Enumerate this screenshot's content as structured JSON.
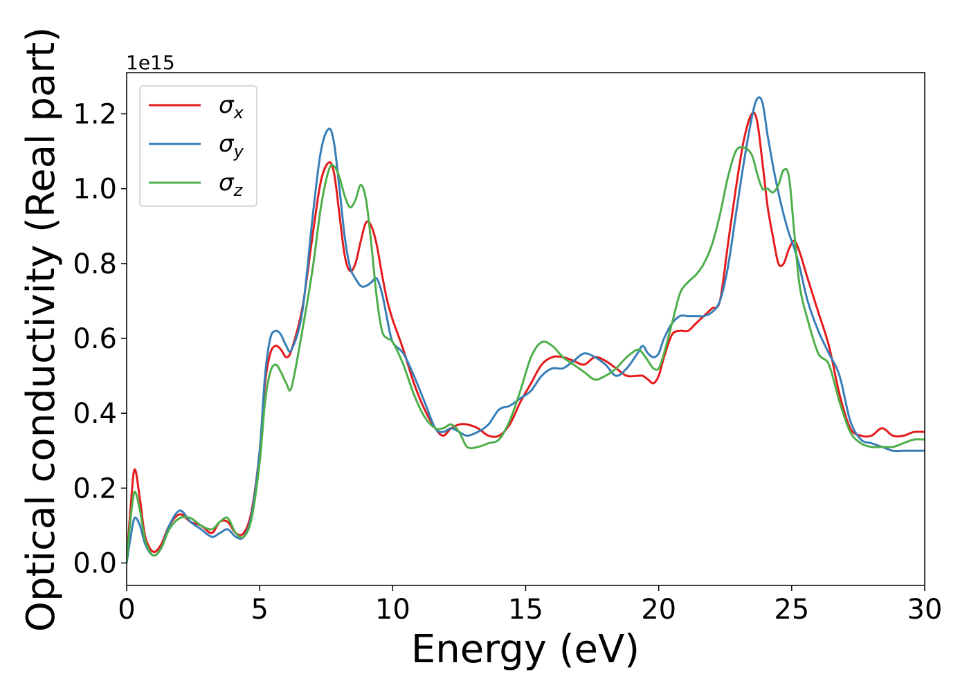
{
  "chart_data": {
    "type": "line",
    "xlabel": "Energy (eV)",
    "ylabel": "Optical conductivity (Real part)",
    "y_offset_text": "1e15",
    "xlim": [
      0,
      30
    ],
    "ylim": [
      -0.06,
      1.31
    ],
    "xticks": [
      0,
      5,
      10,
      15,
      20,
      25,
      30
    ],
    "xtick_labels": [
      "0",
      "5",
      "10",
      "15",
      "20",
      "25",
      "30"
    ],
    "yticks": [
      0.0,
      0.2,
      0.4,
      0.6,
      0.8,
      1.0,
      1.2
    ],
    "ytick_labels": [
      "0.0",
      "0.2",
      "0.4",
      "0.6",
      "0.8",
      "1.0",
      "1.2"
    ],
    "grid": false,
    "legend_position": "top-left",
    "series": [
      {
        "name": "σx",
        "symbol": "σ",
        "subscript": "x",
        "color": "#e41a1c",
        "x": [
          0,
          0.15,
          0.3,
          0.5,
          0.7,
          1.0,
          1.3,
          1.6,
          2.0,
          2.4,
          2.8,
          3.2,
          3.5,
          3.8,
          4.1,
          4.4,
          4.7,
          5.0,
          5.2,
          5.4,
          5.6,
          5.8,
          6.0,
          6.2,
          6.6,
          7.0,
          7.3,
          7.6,
          7.8,
          8.0,
          8.2,
          8.4,
          8.6,
          8.8,
          9.0,
          9.2,
          9.4,
          9.6,
          9.8,
          10.0,
          10.4,
          10.8,
          11.2,
          11.6,
          11.9,
          12.2,
          12.5,
          12.8,
          13.2,
          13.6,
          14.0,
          14.4,
          14.8,
          15.2,
          15.6,
          16.0,
          16.4,
          16.8,
          17.2,
          17.6,
          18.0,
          18.4,
          18.8,
          19.2,
          19.4,
          19.6,
          19.8,
          20.0,
          20.2,
          20.5,
          20.8,
          21.1,
          21.4,
          21.7,
          22.0,
          22.3,
          22.6,
          22.9,
          23.2,
          23.5,
          23.7,
          23.9,
          24.1,
          24.3,
          24.5,
          24.7,
          24.9,
          25.1,
          25.3,
          25.6,
          26.0,
          26.4,
          26.8,
          27.2,
          27.6,
          28.0,
          28.4,
          28.8,
          29.2,
          29.6,
          30.0
        ],
        "y": [
          0.0,
          0.15,
          0.25,
          0.17,
          0.07,
          0.03,
          0.05,
          0.1,
          0.13,
          0.11,
          0.1,
          0.08,
          0.11,
          0.11,
          0.08,
          0.08,
          0.14,
          0.3,
          0.48,
          0.56,
          0.58,
          0.57,
          0.55,
          0.57,
          0.68,
          0.88,
          1.02,
          1.07,
          1.04,
          0.93,
          0.82,
          0.78,
          0.8,
          0.86,
          0.91,
          0.9,
          0.85,
          0.77,
          0.7,
          0.65,
          0.57,
          0.48,
          0.41,
          0.36,
          0.34,
          0.36,
          0.37,
          0.37,
          0.36,
          0.34,
          0.34,
          0.37,
          0.43,
          0.48,
          0.53,
          0.55,
          0.55,
          0.54,
          0.53,
          0.55,
          0.54,
          0.52,
          0.5,
          0.5,
          0.5,
          0.49,
          0.48,
          0.5,
          0.55,
          0.61,
          0.62,
          0.62,
          0.64,
          0.66,
          0.68,
          0.7,
          0.85,
          1.0,
          1.13,
          1.2,
          1.18,
          1.07,
          0.95,
          0.87,
          0.8,
          0.8,
          0.84,
          0.86,
          0.83,
          0.76,
          0.67,
          0.58,
          0.45,
          0.36,
          0.34,
          0.34,
          0.36,
          0.34,
          0.34,
          0.35,
          0.35
        ]
      },
      {
        "name": "σy",
        "symbol": "σ",
        "subscript": "y",
        "color": "#377eb8",
        "x": [
          0,
          0.15,
          0.3,
          0.5,
          0.7,
          1.0,
          1.3,
          1.6,
          2.0,
          2.4,
          2.8,
          3.2,
          3.5,
          3.8,
          4.1,
          4.4,
          4.7,
          5.0,
          5.2,
          5.4,
          5.6,
          5.8,
          6.0,
          6.2,
          6.6,
          7.0,
          7.3,
          7.6,
          7.8,
          8.0,
          8.2,
          8.4,
          8.6,
          8.8,
          9.0,
          9.2,
          9.4,
          9.6,
          9.8,
          10.0,
          10.4,
          10.8,
          11.2,
          11.6,
          11.9,
          12.2,
          12.5,
          12.8,
          13.2,
          13.6,
          14.0,
          14.4,
          14.8,
          15.2,
          15.6,
          16.0,
          16.4,
          16.8,
          17.2,
          17.6,
          18.0,
          18.4,
          18.8,
          19.2,
          19.4,
          19.6,
          19.8,
          20.0,
          20.2,
          20.5,
          20.8,
          21.1,
          21.4,
          21.7,
          22.0,
          22.3,
          22.6,
          22.9,
          23.2,
          23.5,
          23.7,
          23.9,
          24.1,
          24.3,
          24.5,
          24.7,
          24.9,
          25.1,
          25.3,
          25.6,
          26.0,
          26.4,
          26.8,
          27.2,
          27.6,
          28.0,
          28.4,
          28.8,
          29.2,
          29.6,
          30.0
        ],
        "y": [
          0.0,
          0.07,
          0.12,
          0.1,
          0.05,
          0.02,
          0.04,
          0.1,
          0.14,
          0.11,
          0.09,
          0.07,
          0.08,
          0.09,
          0.07,
          0.07,
          0.13,
          0.3,
          0.5,
          0.6,
          0.62,
          0.61,
          0.58,
          0.57,
          0.67,
          0.93,
          1.1,
          1.16,
          1.12,
          1.0,
          0.87,
          0.79,
          0.76,
          0.74,
          0.74,
          0.75,
          0.76,
          0.72,
          0.65,
          0.59,
          0.56,
          0.5,
          0.43,
          0.36,
          0.35,
          0.36,
          0.35,
          0.34,
          0.35,
          0.37,
          0.41,
          0.42,
          0.44,
          0.46,
          0.5,
          0.52,
          0.52,
          0.54,
          0.56,
          0.55,
          0.53,
          0.5,
          0.52,
          0.56,
          0.58,
          0.56,
          0.55,
          0.56,
          0.6,
          0.64,
          0.66,
          0.66,
          0.66,
          0.66,
          0.67,
          0.7,
          0.79,
          0.93,
          1.07,
          1.19,
          1.24,
          1.23,
          1.14,
          1.06,
          0.99,
          0.93,
          0.88,
          0.84,
          0.79,
          0.7,
          0.62,
          0.56,
          0.5,
          0.38,
          0.33,
          0.32,
          0.31,
          0.3,
          0.3,
          0.3,
          0.3
        ]
      },
      {
        "name": "σz",
        "symbol": "σ",
        "subscript": "z",
        "color": "#4daf4a",
        "x": [
          0,
          0.15,
          0.3,
          0.5,
          0.7,
          1.0,
          1.3,
          1.6,
          2.0,
          2.4,
          2.8,
          3.2,
          3.5,
          3.8,
          4.1,
          4.4,
          4.7,
          5.0,
          5.2,
          5.4,
          5.6,
          5.8,
          6.0,
          6.2,
          6.6,
          7.0,
          7.3,
          7.6,
          7.8,
          8.0,
          8.2,
          8.4,
          8.6,
          8.8,
          9.0,
          9.2,
          9.4,
          9.6,
          9.8,
          10.0,
          10.4,
          10.8,
          11.2,
          11.6,
          11.9,
          12.2,
          12.5,
          12.8,
          13.2,
          13.6,
          14.0,
          14.4,
          14.8,
          15.2,
          15.6,
          16.0,
          16.4,
          16.8,
          17.2,
          17.6,
          18.0,
          18.4,
          18.8,
          19.2,
          19.4,
          19.6,
          19.8,
          20.0,
          20.2,
          20.5,
          20.8,
          21.1,
          21.4,
          21.7,
          22.0,
          22.3,
          22.6,
          22.9,
          23.2,
          23.5,
          23.7,
          23.9,
          24.1,
          24.3,
          24.5,
          24.7,
          24.9,
          25.1,
          25.3,
          25.6,
          26.0,
          26.4,
          26.8,
          27.2,
          27.6,
          28.0,
          28.4,
          28.8,
          29.2,
          29.6,
          30.0
        ],
        "y": [
          0.0,
          0.12,
          0.19,
          0.14,
          0.06,
          0.02,
          0.04,
          0.09,
          0.12,
          0.12,
          0.1,
          0.09,
          0.11,
          0.12,
          0.08,
          0.07,
          0.12,
          0.27,
          0.43,
          0.51,
          0.53,
          0.51,
          0.48,
          0.47,
          0.62,
          0.79,
          0.95,
          1.05,
          1.06,
          1.03,
          0.98,
          0.95,
          0.97,
          1.01,
          0.97,
          0.85,
          0.71,
          0.62,
          0.6,
          0.59,
          0.53,
          0.45,
          0.39,
          0.36,
          0.36,
          0.37,
          0.35,
          0.31,
          0.31,
          0.32,
          0.33,
          0.38,
          0.46,
          0.55,
          0.59,
          0.58,
          0.55,
          0.53,
          0.51,
          0.49,
          0.5,
          0.52,
          0.55,
          0.57,
          0.56,
          0.54,
          0.52,
          0.52,
          0.56,
          0.64,
          0.72,
          0.75,
          0.77,
          0.8,
          0.85,
          0.93,
          1.03,
          1.1,
          1.11,
          1.09,
          1.04,
          1.0,
          1.0,
          0.99,
          1.01,
          1.05,
          1.03,
          0.88,
          0.74,
          0.65,
          0.56,
          0.53,
          0.43,
          0.35,
          0.32,
          0.31,
          0.31,
          0.31,
          0.32,
          0.33,
          0.33
        ]
      }
    ]
  }
}
